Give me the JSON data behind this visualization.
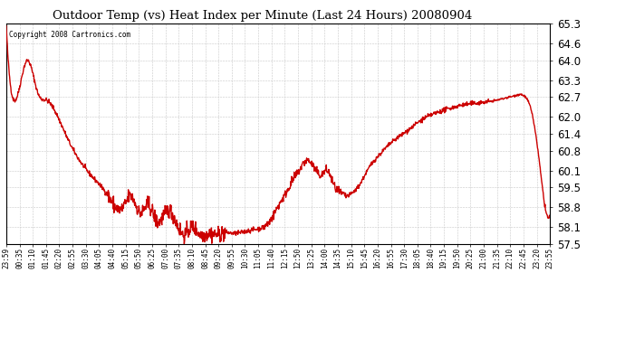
{
  "title": "Outdoor Temp (vs) Heat Index per Minute (Last 24 Hours) 20080904",
  "copyright": "Copyright 2008 Cartronics.com",
  "line_color": "#cc0000",
  "bg_color": "#ffffff",
  "plot_bg_color": "#ffffff",
  "grid_color": "#c8c8c8",
  "ylim": [
    57.5,
    65.3
  ],
  "yticks": [
    57.5,
    58.1,
    58.8,
    59.5,
    60.1,
    60.8,
    61.4,
    62.0,
    62.7,
    63.3,
    64.0,
    64.6,
    65.3
  ],
  "xtick_labels": [
    "23:59",
    "00:35",
    "01:10",
    "01:45",
    "02:20",
    "02:55",
    "03:30",
    "04:05",
    "04:40",
    "05:15",
    "05:50",
    "06:25",
    "07:00",
    "07:35",
    "08:10",
    "08:45",
    "09:20",
    "09:55",
    "10:30",
    "11:05",
    "11:40",
    "12:15",
    "12:50",
    "13:25",
    "14:00",
    "14:35",
    "15:10",
    "15:45",
    "16:20",
    "16:55",
    "17:30",
    "18:05",
    "18:40",
    "19:15",
    "19:50",
    "20:25",
    "21:00",
    "21:35",
    "22:10",
    "22:45",
    "23:20",
    "23:55"
  ],
  "line_width": 1.0,
  "title_fontsize": 9.5,
  "ytick_fontsize": 8.5,
  "xtick_fontsize": 5.5,
  "copyright_fontsize": 5.5
}
